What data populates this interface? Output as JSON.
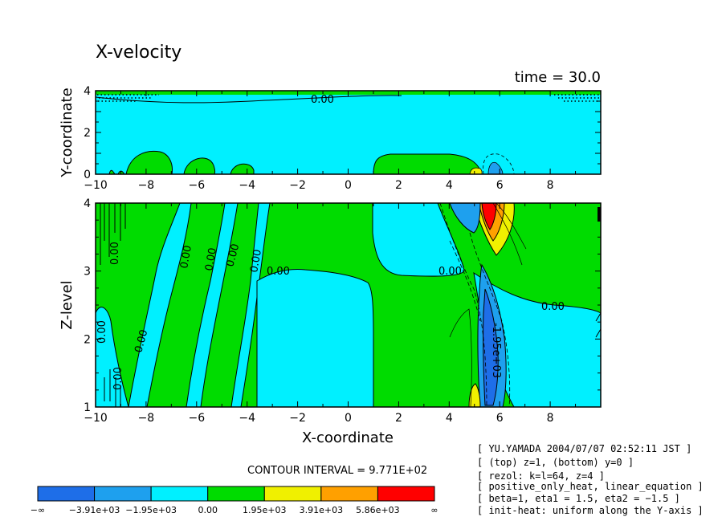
{
  "chart_data": {
    "type": "contour",
    "title": "X-velocity",
    "time_label": "time = 30.0",
    "contour_interval_text": "CONTOUR INTERVAL = 9.771E+02",
    "contour_label": "0.00",
    "contour_label_neg": "-1.95e+03",
    "top_panel": {
      "ylabel": "Y-coordinate",
      "xlim": [
        -10,
        10
      ],
      "ylim": [
        0,
        4
      ],
      "yticks": [
        "0",
        "2",
        "4"
      ]
    },
    "bottom_panel": {
      "xlabel": "X-coordinate",
      "ylabel": "Z-level",
      "xlim": [
        -10,
        10
      ],
      "ylim": [
        1,
        4
      ],
      "yticks": [
        "1",
        "2",
        "3",
        "4"
      ]
    },
    "xticks": [
      "−10",
      "−8",
      "−6",
      "−4",
      "−2",
      "0",
      "2",
      "4",
      "6",
      "8"
    ],
    "colorbar": {
      "levels": [
        {
          "label": "−∞",
          "color": "#1e6ee8"
        },
        {
          "label": "−3.91e+03",
          "color": "#1ea0ee"
        },
        {
          "label": "−1.95e+03",
          "color": "#00f0ff"
        },
        {
          "label": "0.00",
          "color": "#00dc00"
        },
        {
          "label": "1.95e+03",
          "color": "#f0f000"
        },
        {
          "label": "3.91e+03",
          "color": "#ffa000"
        },
        {
          "label": "5.86e+03",
          "color": "#ff0000"
        }
      ],
      "end_label": "∞"
    }
  },
  "info_lines": [
    "[ YU.YAMADA 2004/07/07 02:52:11 JST ]",
    "[ (top) z=1, (bottom) y=0 ]",
    "[ rezol: k=l=64, z=4 ]",
    "[ positive_only_heat, linear_equation ]",
    "[ beta=1, eta1 = 1.5, eta2 = −1.5 ]",
    "[ init-heat: uniform along the Y-axis ]"
  ]
}
